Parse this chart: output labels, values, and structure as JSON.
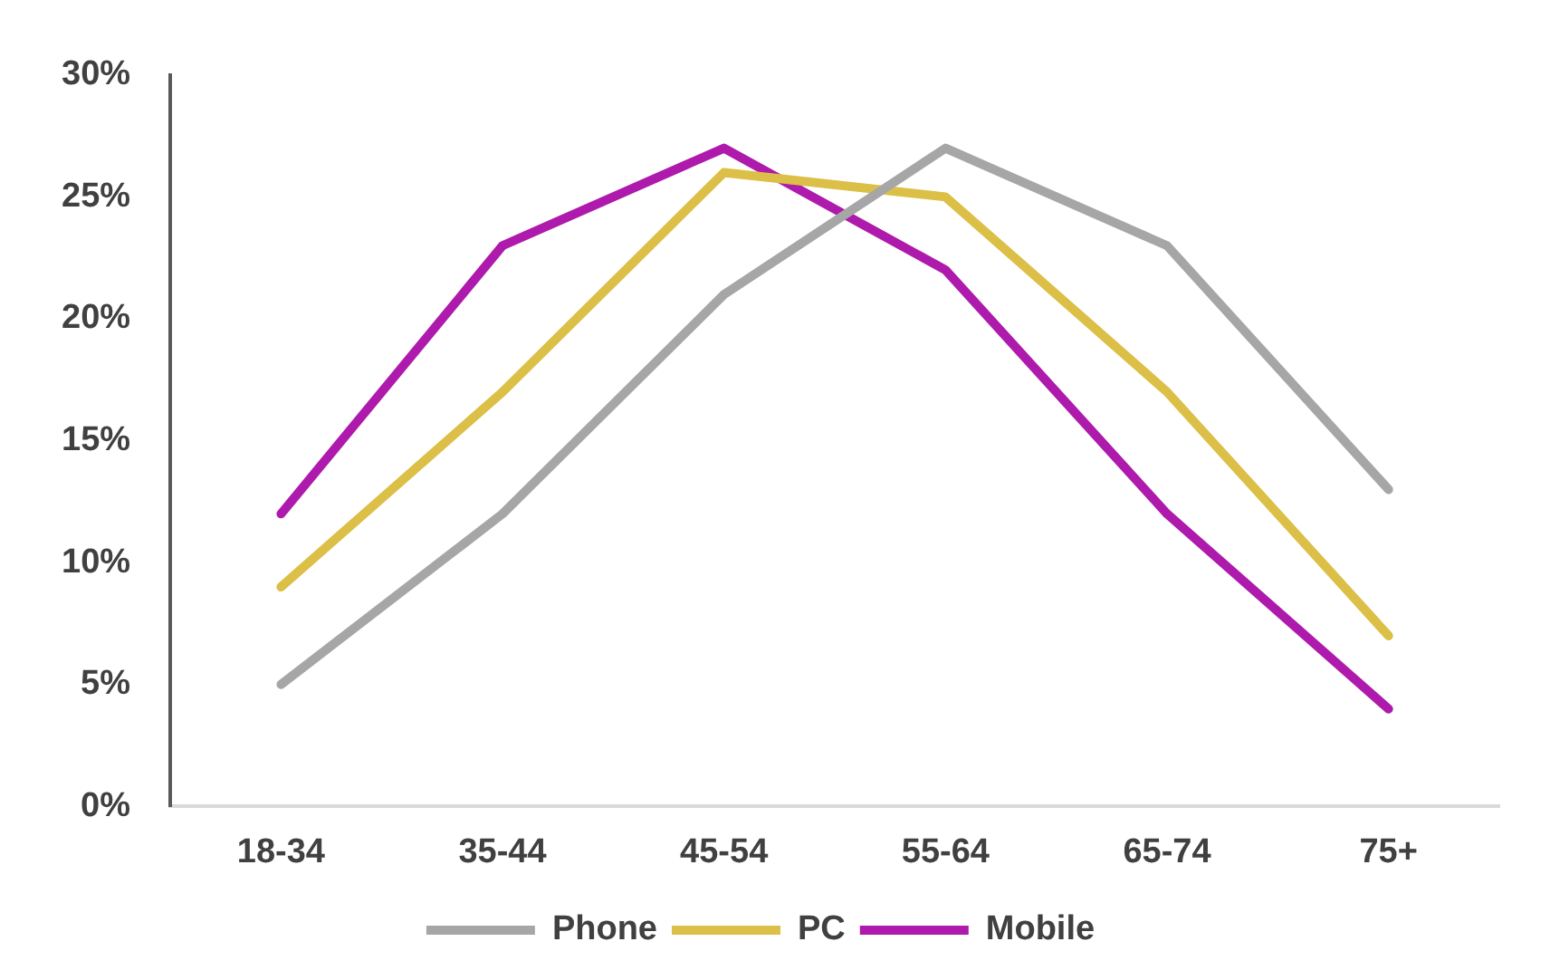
{
  "chart_data": {
    "type": "line",
    "categories": [
      "18-34",
      "35-44",
      "45-54",
      "55-64",
      "65-74",
      "75+"
    ],
    "series": [
      {
        "name": "Phone",
        "color": "#a6a6a6",
        "values": [
          5,
          12,
          21,
          27,
          23,
          13
        ]
      },
      {
        "name": "PC",
        "color": "#dcbf47",
        "values": [
          9,
          17,
          26,
          25,
          17,
          7
        ]
      },
      {
        "name": "Mobile",
        "color": "#ad1aac",
        "values": [
          12,
          23,
          27,
          22,
          12,
          4
        ]
      }
    ],
    "ylim": [
      0,
      30
    ],
    "yticks": [
      {
        "value": 0,
        "label": "0%"
      },
      {
        "value": 5,
        "label": "5%"
      },
      {
        "value": 10,
        "label": "10%"
      },
      {
        "value": 15,
        "label": "15%"
      },
      {
        "value": 20,
        "label": "20%"
      },
      {
        "value": 25,
        "label": "25%"
      },
      {
        "value": 30,
        "label": "30%"
      }
    ],
    "grid": false,
    "legend": "bottom",
    "marker": "none",
    "line_style": "solid"
  }
}
